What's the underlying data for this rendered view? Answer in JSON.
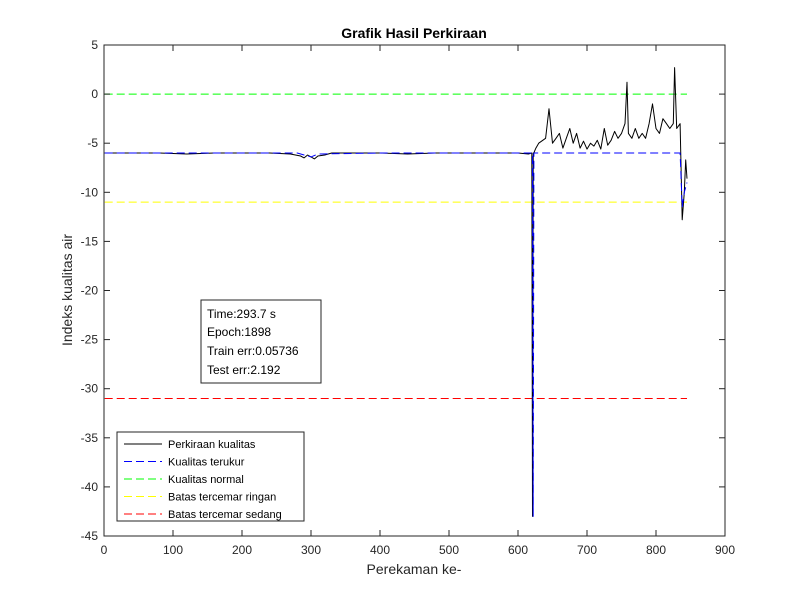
{
  "chart_data": {
    "type": "line",
    "title": "Grafik Hasil Perkiraan",
    "xlabel": "Perekaman ke-",
    "ylabel": "Indeks kualitas air",
    "xlim": [
      0,
      900
    ],
    "ylim": [
      -45,
      5
    ],
    "xticks": [
      0,
      100,
      200,
      300,
      400,
      500,
      600,
      700,
      800,
      900
    ],
    "yticks": [
      5,
      0,
      -5,
      -10,
      -15,
      -20,
      -25,
      -30,
      -35,
      -40,
      -45
    ],
    "grid": false,
    "legend_position": "bottom-left",
    "series": [
      {
        "name": "Perkiraan kualitas",
        "color": "#000000",
        "style": "solid",
        "x": [
          1,
          40,
          80,
          120,
          160,
          200,
          240,
          270,
          285,
          290,
          295,
          300,
          305,
          310,
          320,
          330,
          360,
          400,
          440,
          480,
          520,
          560,
          600,
          615,
          620,
          621,
          622,
          623,
          624,
          626,
          630,
          640,
          645,
          650,
          655,
          660,
          665,
          670,
          675,
          680,
          685,
          690,
          695,
          700,
          705,
          710,
          715,
          720,
          725,
          730,
          735,
          740,
          745,
          750,
          755,
          758,
          760,
          765,
          770,
          775,
          780,
          785,
          790,
          795,
          800,
          805,
          810,
          815,
          820,
          825,
          827,
          830,
          835,
          838,
          841,
          843,
          845
        ],
        "y": [
          -6.0,
          -6.0,
          -6.0,
          -6.1,
          -6.0,
          -6.0,
          -6.0,
          -6.1,
          -6.3,
          -6.5,
          -6.2,
          -6.4,
          -6.6,
          -6.3,
          -6.2,
          -6.0,
          -6.0,
          -6.0,
          -6.1,
          -6.0,
          -6.0,
          -6.0,
          -6.0,
          -6.1,
          -6.0,
          -43.0,
          -6.0,
          -6.0,
          -5.8,
          -5.5,
          -5.0,
          -4.5,
          -1.5,
          -5.0,
          -4.5,
          -4.0,
          -5.5,
          -4.5,
          -3.5,
          -5.0,
          -4.0,
          -5.5,
          -4.8,
          -5.6,
          -5.0,
          -5.3,
          -4.7,
          -5.6,
          -3.5,
          -5.2,
          -4.7,
          -3.8,
          -4.5,
          -4.0,
          -3.0,
          1.2,
          -4.0,
          -4.5,
          -3.5,
          -4.5,
          -4.0,
          -4.5,
          -3.0,
          -1.0,
          -3.5,
          -4.0,
          -2.5,
          -3.0,
          -3.5,
          -3.0,
          2.7,
          -3.5,
          -3.0,
          -12.8,
          -10.0,
          -6.7,
          -8.6
        ]
      },
      {
        "name": "Kualitas terukur",
        "color": "#0000ff",
        "style": "dashed",
        "x": [
          1,
          100,
          200,
          280,
          290,
          300,
          310,
          400,
          500,
          600,
          621,
          622,
          623,
          630,
          700,
          800,
          835,
          838,
          841,
          845
        ],
        "y": [
          -6.0,
          -6.0,
          -6.0,
          -6.0,
          -6.2,
          -6.4,
          -6.1,
          -6.0,
          -6.0,
          -6.0,
          -6.0,
          -43.0,
          -6.0,
          -6.0,
          -6.0,
          -6.0,
          -6.0,
          -11.5,
          -10.0,
          -9.0
        ]
      },
      {
        "name": "Kualitas normal",
        "color": "#00ff00",
        "style": "dashed",
        "x": [
          1,
          845
        ],
        "y": [
          0,
          0
        ]
      },
      {
        "name": "Batas tercemar ringan",
        "color": "#ffff00",
        "style": "dashed",
        "x": [
          1,
          845
        ],
        "y": [
          -11,
          -11
        ]
      },
      {
        "name": "Batas tercemar sedang",
        "color": "#ff0000",
        "style": "dashed",
        "x": [
          1,
          845
        ],
        "y": [
          -31,
          -31
        ]
      }
    ],
    "annotation": [
      "Time:293.7 s",
      "Epoch:1898",
      "Train err:0.05736",
      "Test err:2.192"
    ]
  }
}
